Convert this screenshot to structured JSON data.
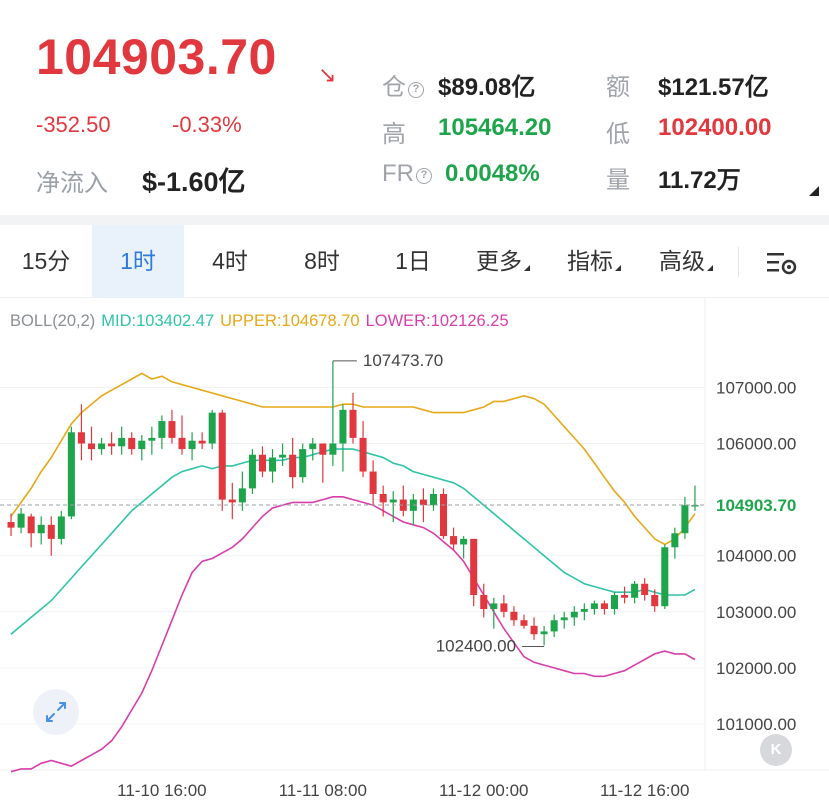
{
  "ticker": {
    "price": "104903.70",
    "direction_icon": "arrow-down-right-icon",
    "change": "-352.50",
    "change_pct": "-0.33%",
    "net_flow_label": "净流入",
    "net_flow_value": "$-1.60亿"
  },
  "stats": {
    "position_label": "仓",
    "position_value": "$89.08亿",
    "turnover_label": "额",
    "turnover_value": "$121.57亿",
    "high_label": "高",
    "high_value": "105464.20",
    "low_label": "低",
    "low_value": "102400.00",
    "fr_label": "FR",
    "fr_value": "0.0048%",
    "volume_label": "量",
    "volume_value": "11.72万"
  },
  "tabs": [
    {
      "label": "15分"
    },
    {
      "label": "1时",
      "active": true
    },
    {
      "label": "4时"
    },
    {
      "label": "8时"
    },
    {
      "label": "1日"
    },
    {
      "label": "更多"
    },
    {
      "label": "指标"
    },
    {
      "label": "高级"
    }
  ],
  "indicator": {
    "name": "BOLL(20,2)",
    "mid": "MID:103402.47",
    "upper": "UPPER:104678.70",
    "lower": "LOWER:102126.25"
  },
  "colors": {
    "up": "#1ea54c",
    "down": "#e0383e",
    "mid": "#2fc4a7",
    "upper": "#e6a817",
    "lower": "#d83eaa"
  },
  "chart_data": {
    "type": "candlestick",
    "y_ticks": [
      "107000.00",
      "106000.00",
      "105000.00",
      "104000.00",
      "103000.00",
      "102000.00",
      "101000.00"
    ],
    "y_tick_values": [
      107000,
      106000,
      105000,
      104000,
      103000,
      102000,
      101000
    ],
    "x_ticks": [
      "11-10 16:00",
      "11-11 08:00",
      "11-12 00:00",
      "11-12 16:00"
    ],
    "x_tick_index": [
      15,
      31,
      47,
      63
    ],
    "current_price_label": "104903.70",
    "current_price": 104903.7,
    "max_label": "107473.70",
    "max_value": 107473.7,
    "max_index": 32,
    "min_label": "102400.00",
    "min_value": 102400.0,
    "min_index": 53,
    "candles": [
      [
        104600,
        104750,
        104350,
        104500
      ],
      [
        104500,
        104850,
        104400,
        104750
      ],
      [
        104700,
        104750,
        104150,
        104400
      ],
      [
        104400,
        104700,
        104200,
        104550
      ],
      [
        104550,
        104700,
        104000,
        104300
      ],
      [
        104300,
        104800,
        104200,
        104700
      ],
      [
        104700,
        106300,
        104650,
        106200
      ],
      [
        106200,
        106700,
        105700,
        106000
      ],
      [
        106000,
        106300,
        105700,
        105900
      ],
      [
        105900,
        106100,
        105800,
        106000
      ],
      [
        106000,
        106200,
        105800,
        105950
      ],
      [
        105950,
        106300,
        105800,
        106100
      ],
      [
        106100,
        106200,
        105800,
        105900
      ],
      [
        105900,
        106150,
        105700,
        106050
      ],
      [
        106050,
        106300,
        105800,
        106100
      ],
      [
        106100,
        106500,
        105900,
        106400
      ],
      [
        106400,
        106600,
        106000,
        106100
      ],
      [
        106100,
        106500,
        105800,
        105900
      ],
      [
        105900,
        106200,
        105700,
        106050
      ],
      [
        106050,
        106200,
        105900,
        106000
      ],
      [
        106000,
        106600,
        105900,
        106550
      ],
      [
        106550,
        106600,
        104800,
        105000
      ],
      [
        105000,
        105300,
        104650,
        104950
      ],
      [
        104950,
        105500,
        104800,
        105200
      ],
      [
        105200,
        105900,
        105100,
        105800
      ],
      [
        105800,
        105950,
        105400,
        105500
      ],
      [
        105500,
        105900,
        105300,
        105750
      ],
      [
        105750,
        106000,
        105600,
        105800
      ],
      [
        105800,
        106100,
        105200,
        105400
      ],
      [
        105400,
        106000,
        105300,
        105900
      ],
      [
        105900,
        106100,
        105700,
        106000
      ],
      [
        106000,
        106000,
        105300,
        105800
      ],
      [
        105800,
        107473.7,
        105600,
        106000
      ],
      [
        106000,
        106700,
        105500,
        106600
      ],
      [
        106600,
        106900,
        106000,
        106100
      ],
      [
        106100,
        106400,
        105400,
        105500
      ],
      [
        105500,
        105700,
        104900,
        105100
      ],
      [
        105100,
        105250,
        104700,
        104950
      ],
      [
        104950,
        105150,
        104600,
        105000
      ],
      [
        105000,
        105250,
        104700,
        104800
      ],
      [
        104800,
        105100,
        104550,
        105000
      ],
      [
        105000,
        105200,
        104600,
        104900
      ],
      [
        104900,
        105200,
        104800,
        105100
      ],
      [
        105100,
        105200,
        104300,
        104350
      ],
      [
        104350,
        104500,
        104100,
        104200
      ],
      [
        104200,
        104350,
        103950,
        104300
      ],
      [
        104300,
        104300,
        103100,
        103300
      ],
      [
        103300,
        103500,
        102900,
        103050
      ],
      [
        103050,
        103250,
        102700,
        103150
      ],
      [
        103150,
        103300,
        102900,
        103000
      ],
      [
        103000,
        103100,
        102750,
        102850
      ],
      [
        102850,
        102950,
        102700,
        102750
      ],
      [
        102750,
        102900,
        102500,
        102600
      ],
      [
        102600,
        102750,
        102400,
        102650
      ],
      [
        102650,
        102950,
        102550,
        102850
      ],
      [
        102850,
        103000,
        102700,
        102900
      ],
      [
        102900,
        103100,
        102750,
        103000
      ],
      [
        103000,
        103150,
        102850,
        103050
      ],
      [
        103050,
        103200,
        102950,
        103150
      ],
      [
        103150,
        103200,
        102950,
        103050
      ],
      [
        103050,
        103350,
        102950,
        103300
      ],
      [
        103300,
        103450,
        103150,
        103250
      ],
      [
        103250,
        103550,
        103150,
        103500
      ],
      [
        103500,
        103600,
        103200,
        103300
      ],
      [
        103300,
        103400,
        103000,
        103100
      ],
      [
        103100,
        104200,
        103050,
        104150
      ],
      [
        104150,
        104500,
        103950,
        104400
      ],
      [
        104400,
        105050,
        104300,
        104900
      ],
      [
        104900,
        105250,
        104800,
        104904
      ]
    ],
    "upper": [
      104700,
      104950,
      105200,
      105500,
      105750,
      106050,
      106350,
      106550,
      106700,
      106850,
      106950,
      107050,
      107150,
      107250,
      107150,
      107200,
      107100,
      107050,
      107000,
      106950,
      106900,
      106850,
      106800,
      106750,
      106700,
      106650,
      106650,
      106650,
      106650,
      106650,
      106650,
      106650,
      106650,
      106700,
      106700,
      106650,
      106650,
      106650,
      106650,
      106650,
      106650,
      106600,
      106550,
      106550,
      106550,
      106550,
      106600,
      106650,
      106750,
      106750,
      106800,
      106850,
      106800,
      106700,
      106500,
      106300,
      106100,
      105900,
      105650,
      105400,
      105150,
      104950,
      104700,
      104500,
      104300,
      104200,
      104300,
      104500,
      104750
    ],
    "mid": [
      102600,
      102750,
      102900,
      103050,
      103200,
      103400,
      103600,
      103800,
      104000,
      104200,
      104400,
      104600,
      104800,
      104950,
      105100,
      105250,
      105400,
      105500,
      105550,
      105600,
      105550,
      105600,
      105600,
      105650,
      105700,
      105700,
      105700,
      105700,
      105750,
      105750,
      105800,
      105850,
      105900,
      105900,
      105900,
      105850,
      105800,
      105750,
      105650,
      105600,
      105500,
      105450,
      105400,
      105350,
      105300,
      105200,
      105050,
      104900,
      104750,
      104600,
      104450,
      104300,
      104150,
      104000,
      103850,
      103700,
      103600,
      103500,
      103450,
      103400,
      103350,
      103350,
      103350,
      103400,
      103350,
      103300,
      103300,
      103300,
      103400
    ],
    "lower": [
      100150,
      100200,
      100200,
      100300,
      100350,
      100300,
      100250,
      100350,
      100450,
      100550,
      100700,
      100950,
      101250,
      101550,
      101950,
      102400,
      102850,
      103300,
      103700,
      103900,
      103950,
      104050,
      104150,
      104300,
      104500,
      104700,
      104850,
      104900,
      104950,
      104950,
      104950,
      105000,
      105050,
      105050,
      105000,
      104950,
      104900,
      104800,
      104700,
      104600,
      104550,
      104500,
      104400,
      104250,
      104100,
      103900,
      103600,
      103300,
      103000,
      102700,
      102450,
      102200,
      102100,
      102050,
      102000,
      101950,
      101900,
      101900,
      101850,
      101850,
      101900,
      101950,
      102050,
      102150,
      102250,
      102300,
      102250,
      102250,
      102150
    ]
  }
}
